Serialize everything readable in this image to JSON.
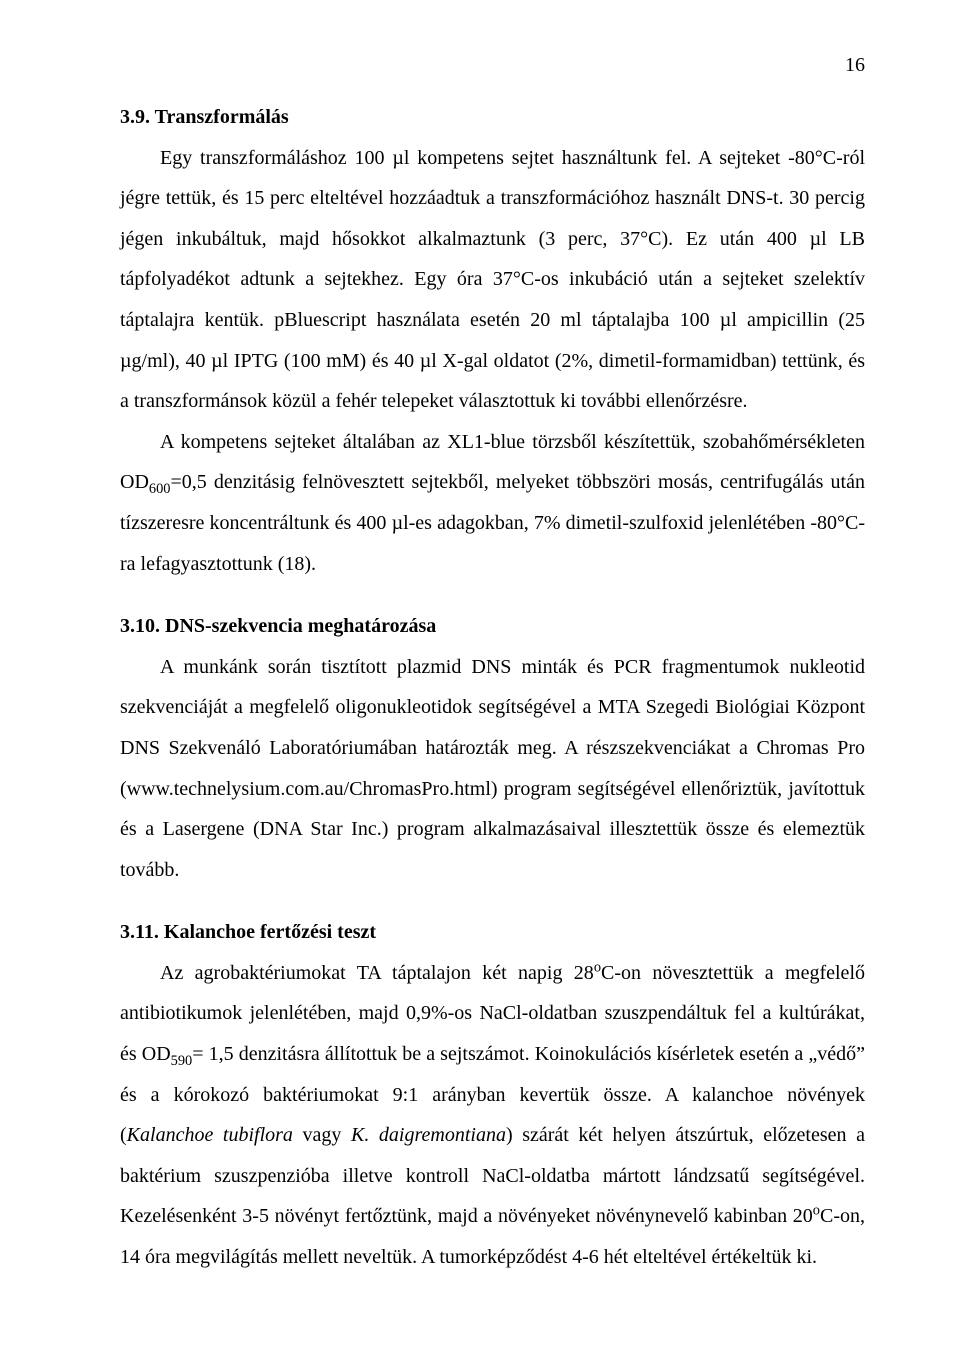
{
  "pageNumber": "16",
  "sections": [
    {
      "heading": "3.9. Transzformálás",
      "paragraphs": [
        {
          "indent": true,
          "runs": [
            {
              "t": "Egy transzformáláshoz 100 µl kompetens sejtet használtunk fel. A sejteket -80°C-ról jégre tettük, és 15 perc elteltével hozzáadtuk a transzformációhoz használt DNS-t. 30 percig jégen inkubáltuk, majd hősokkot alkalmaztunk (3 perc, 37°C). Ez után 400 µl LB tápfolyadékot adtunk a sejtekhez. Egy óra 37°C-os inkubáció után a sejteket szelektív táptalajra kentük. pBluescript használata esetén 20 ml táptalajba 100 µl ampicillin (25 µg/ml), 40 µl IPTG (100 mM) és 40 µl X-gal oldatot (2%, dimetil-formamidban) tettünk, és a transzformánsok közül a fehér telepeket választottuk ki további ellenőrzésre."
            }
          ]
        },
        {
          "indent": true,
          "runs": [
            {
              "t": "A kompetens sejteket általában az XL1-blue törzsből készítettük, szobahőmérsékleten OD"
            },
            {
              "t": "600",
              "sub": true
            },
            {
              "t": "=0,5 denzitásig felnövesztett sejtekből, melyeket többszöri mosás, centrifugálás után tízszeresre koncentráltunk és 400 µl-es adagokban, 7% dimetil-szulfoxid jelenlétében -80°C-ra lefagyasztottunk (18)."
            }
          ]
        }
      ]
    },
    {
      "heading": "3.10. DNS-szekvencia meghatározása",
      "paragraphs": [
        {
          "indent": true,
          "runs": [
            {
              "t": "A munkánk során tisztított plazmid DNS minták és PCR fragmentumok nukleotid szekvenciáját a megfelelő oligonukleotidok segítségével a MTA Szegedi Biológiai Központ DNS Szekvenáló Laboratóriumában határozták meg. A részszekvenciákat a Chromas Pro (www.technelysium.com.au/ChromasPro.html) program segítségével ellenőriztük, javítottuk és a Lasergene (DNA Star Inc.) program alkalmazásaival illesztettük össze és elemeztük tovább."
            }
          ]
        }
      ]
    },
    {
      "heading": "3.11. Kalanchoe fertőzési teszt",
      "paragraphs": [
        {
          "indent": true,
          "runs": [
            {
              "t": "Az agrobaktériumokat TA táptalajon két napig 28"
            },
            {
              "t": "o",
              "sup": true
            },
            {
              "t": "C-on növesztettük a megfelelő antibiotikumok jelenlétében, majd 0,9%-os NaCl-oldatban szuszpendáltuk fel a kultúrákat, és OD"
            },
            {
              "t": "590",
              "sub": true
            },
            {
              "t": "= 1,5 denzitásra állítottuk be a sejtszámot. Koinokulációs kísérletek esetén a „védő” és a kórokozó baktériumokat 9:1 arányban kevertük össze. A kalanchoe növények ("
            },
            {
              "t": "Kalanchoe tubiflora",
              "italic": true
            },
            {
              "t": " vagy "
            },
            {
              "t": "K. daigremontiana",
              "italic": true
            },
            {
              "t": ") szárát két helyen átszúrtuk, előzetesen a baktérium szuszpenzióba illetve kontroll NaCl-oldatba mártott lándzsatű segítségével. Kezelésenként 3-5 növényt fertőztünk, majd a növényeket növénynevelő kabinban 20"
            },
            {
              "t": "o",
              "sup": true
            },
            {
              "t": "C-on, 14 óra megvilágítás mellett neveltük. A tumorképződést 4-6 hét elteltével értékeltük ki."
            }
          ]
        }
      ]
    }
  ]
}
